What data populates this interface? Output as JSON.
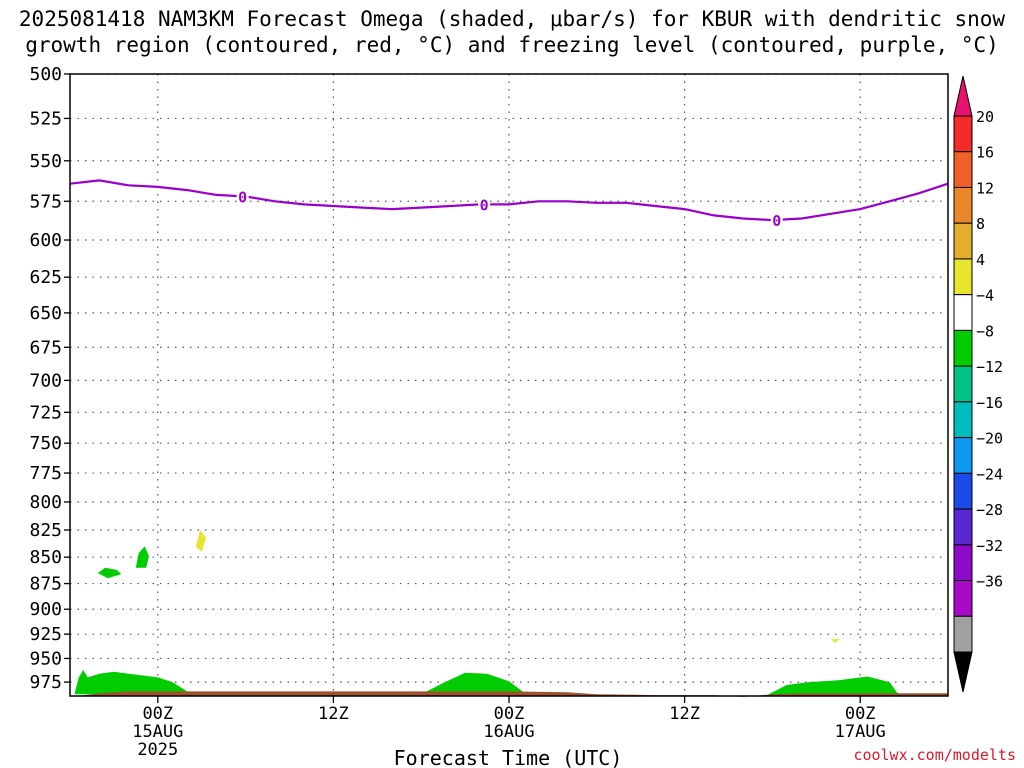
{
  "title_line1": "2025081418 NAM3KM Forecast Omega (shaded, μbar/s) for KBUR with dendritic snow",
  "title_line2": "growth region (contoured, red, °C) and freezing level (contoured, purple, °C)",
  "credit": "coolwx.com/modelts",
  "colors": {
    "freezing": "#9900cc",
    "terrain": "#a0522d",
    "green": "#00cc00",
    "yellow": "#e6e62e"
  },
  "chart_data": {
    "type": "area",
    "xlabel": "Forecast Time (UTC)",
    "ylabel": "",
    "ylim": [
      500,
      990
    ],
    "y_scale": "pressure",
    "grid": true,
    "y_ticks": [
      500,
      525,
      550,
      575,
      600,
      625,
      650,
      675,
      700,
      725,
      750,
      775,
      800,
      825,
      850,
      875,
      900,
      925,
      950,
      975
    ],
    "x_ticks": [
      {
        "hour": 6,
        "label": "00Z",
        "sub1": "15AUG",
        "sub2": "2025"
      },
      {
        "hour": 18,
        "label": "12Z",
        "sub1": "",
        "sub2": ""
      },
      {
        "hour": 30,
        "label": "00Z",
        "sub1": "16AUG",
        "sub2": ""
      },
      {
        "hour": 42,
        "label": "12Z",
        "sub1": "",
        "sub2": ""
      },
      {
        "hour": 54,
        "label": "00Z",
        "sub1": "17AUG",
        "sub2": ""
      }
    ],
    "x_range": [
      0,
      60
    ],
    "freezing_level": {
      "label": "0",
      "hours": [
        0,
        2,
        4,
        6,
        8,
        10,
        12,
        14,
        16,
        18,
        20,
        22,
        24,
        26,
        28,
        30,
        32,
        34,
        36,
        38,
        40,
        42,
        44,
        46,
        48,
        50,
        52,
        54,
        56,
        58,
        60
      ],
      "pressure": [
        564,
        562,
        565,
        566,
        568,
        571,
        572,
        575,
        577,
        578,
        579,
        580,
        579,
        578,
        577,
        577,
        575,
        575,
        576,
        576,
        578,
        580,
        584,
        586,
        587,
        586,
        583,
        580,
        575,
        570,
        564
      ],
      "label_hours": [
        11.8,
        28.3,
        48.3
      ]
    },
    "colorbar": {
      "labels": [
        "20",
        "16",
        "12",
        "8",
        "4",
        "−4",
        "−8",
        "−12",
        "−16",
        "−20",
        "−24",
        "−28",
        "−32",
        "−36"
      ],
      "colors": [
        "#e8116e",
        "#f52a2a",
        "#f2602a",
        "#e8882a",
        "#e6ae2e",
        "#e6e62e",
        "#ffffff",
        "#00cc00",
        "#00c285",
        "#00bcbc",
        "#0d98f2",
        "#1a4be6",
        "#5a28d2",
        "#8c0ac8",
        "#aa0ac8",
        "#a0a0a0",
        "#000000"
      ]
    },
    "regions": [
      {
        "value": -6,
        "color": "green",
        "points": [
          [
            0.3,
            988
          ],
          [
            0.6,
            970
          ],
          [
            0.9,
            962
          ],
          [
            1.2,
            970
          ],
          [
            2,
            966
          ],
          [
            3,
            964
          ],
          [
            4,
            966
          ],
          [
            5,
            968
          ],
          [
            6,
            970
          ],
          [
            7,
            975
          ],
          [
            8,
            985
          ],
          [
            8.5,
            988
          ]
        ]
      },
      {
        "value": -6,
        "color": "green",
        "points": [
          [
            1.9,
            865
          ],
          [
            2.4,
            860
          ],
          [
            3.2,
            862
          ],
          [
            3.5,
            866
          ],
          [
            2.6,
            870
          ]
        ]
      },
      {
        "value": -6,
        "color": "green",
        "points": [
          [
            4.5,
            860
          ],
          [
            4.7,
            846
          ],
          [
            5.1,
            840
          ],
          [
            5.4,
            849
          ],
          [
            5.2,
            860
          ]
        ]
      },
      {
        "value": 6,
        "color": "yellow",
        "points": [
          [
            8.6,
            840
          ],
          [
            8.9,
            825
          ],
          [
            9.3,
            832
          ],
          [
            9.0,
            845
          ]
        ]
      },
      {
        "value": -6,
        "color": "green",
        "points": [
          [
            24,
            988
          ],
          [
            25.5,
            976
          ],
          [
            27,
            965
          ],
          [
            28.5,
            966
          ],
          [
            30,
            974
          ],
          [
            31,
            986
          ],
          [
            31.5,
            988
          ]
        ]
      },
      {
        "value": -6,
        "color": "green",
        "points": [
          [
            47.5,
            990
          ],
          [
            49,
            978
          ],
          [
            50.5,
            975
          ],
          [
            52.5,
            973
          ],
          [
            54.5,
            969
          ],
          [
            56,
            975
          ],
          [
            56.5,
            986
          ],
          [
            57,
            990
          ]
        ]
      },
      {
        "value": 6,
        "color": "yellow",
        "points": [
          [
            52,
            930
          ],
          [
            52.6,
            930
          ],
          [
            52.3,
            934
          ]
        ]
      }
    ],
    "terrain": {
      "hours": [
        0,
        1,
        2,
        4,
        6,
        8,
        10,
        14,
        18,
        22,
        26,
        30,
        34,
        36,
        40,
        44,
        46,
        48,
        50,
        54,
        58,
        60
      ],
      "pressure": [
        990,
        989,
        987,
        985,
        985,
        985,
        985,
        985,
        985,
        985,
        985,
        985,
        986,
        988,
        989,
        989,
        991,
        988,
        987,
        987,
        987,
        987
      ]
    }
  }
}
